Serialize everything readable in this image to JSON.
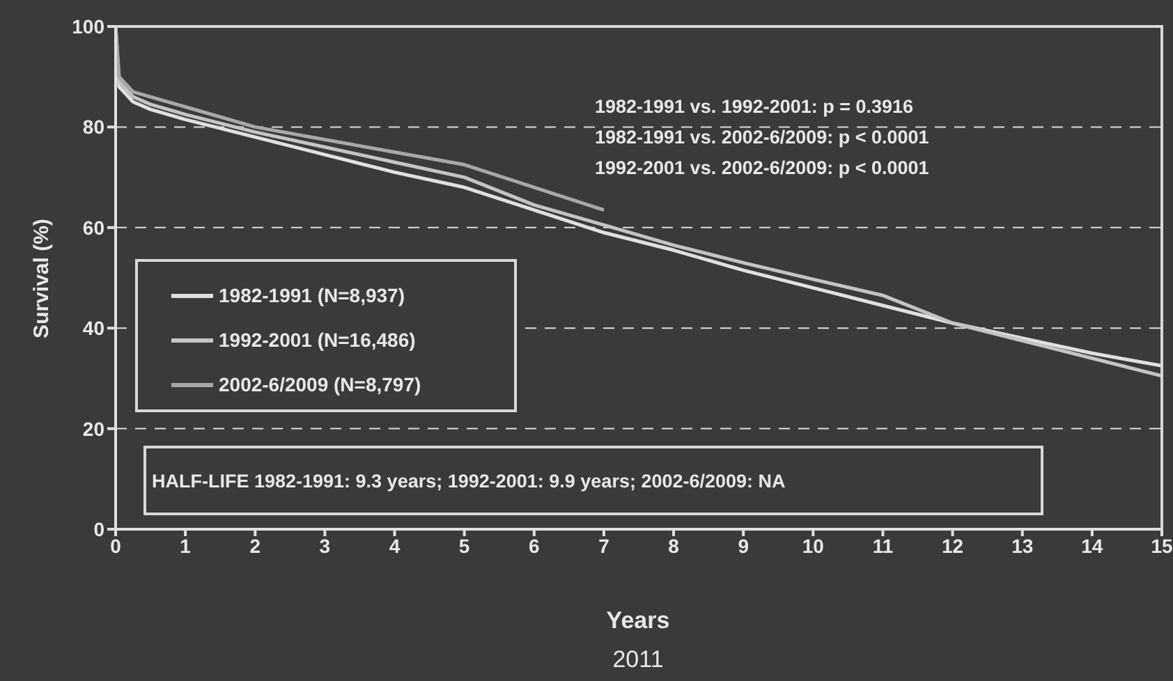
{
  "chart_data": {
    "type": "line",
    "xlabel": "Years",
    "ylabel": "Survival (%)",
    "xlim": [
      0,
      15
    ],
    "xticks": [
      0,
      1,
      2,
      3,
      4,
      5,
      6,
      7,
      8,
      9,
      10,
      11,
      12,
      13,
      14,
      15
    ],
    "ylim": [
      0,
      100
    ],
    "yticks": [
      0,
      20,
      40,
      60,
      80,
      100
    ],
    "grid": "y",
    "legend": "left",
    "marker": "none",
    "line_style": "solid",
    "series": [
      {
        "name": "1982-1991 (N=8,937)",
        "color": "#e0e0e0",
        "x": [
          0,
          0.05,
          0.25,
          0.5,
          1,
          2,
          3,
          4,
          5,
          6,
          7,
          8,
          9,
          10,
          11,
          12,
          13,
          14,
          15
        ],
        "values": [
          100,
          88,
          85,
          83.5,
          81.5,
          78,
          74.5,
          71,
          68,
          63.5,
          59,
          55.5,
          51.5,
          48,
          44.5,
          41,
          38,
          35,
          32.5
        ]
      },
      {
        "name": "1992-2001 (N=16,486)",
        "color": "#c4c4c4",
        "x": [
          0,
          0.05,
          0.25,
          0.5,
          1,
          2,
          3,
          4,
          5,
          6,
          7,
          8,
          9,
          10,
          11,
          12,
          13,
          14,
          15
        ],
        "values": [
          100,
          89,
          86,
          84.5,
          82.5,
          79,
          76,
          73,
          70,
          64.5,
          60.5,
          56.5,
          53,
          49.7,
          46.5,
          41,
          37.5,
          34,
          30.5
        ]
      },
      {
        "name": "2002-6/2009 (N=8,797)",
        "color": "#a8a8a8",
        "x": [
          0,
          0.05,
          0.25,
          0.5,
          1,
          2,
          3,
          4,
          5,
          6,
          7
        ],
        "values": [
          100,
          90,
          87,
          86,
          84,
          80,
          77.5,
          75,
          72.5,
          68,
          63.5
        ]
      }
    ],
    "annotations": [
      "1982-1991 vs. 1992-2001: p = 0.3916",
      "1982-1991 vs. 2002-6/2009: p < 0.0001",
      "1992-2001 vs. 2002-6/2009: p < 0.0001",
      "HALF-LIFE 1982-1991: 9.3 years; 1992-2001: 9.9 years; 2002-6/2009: NA",
      "2011"
    ]
  }
}
